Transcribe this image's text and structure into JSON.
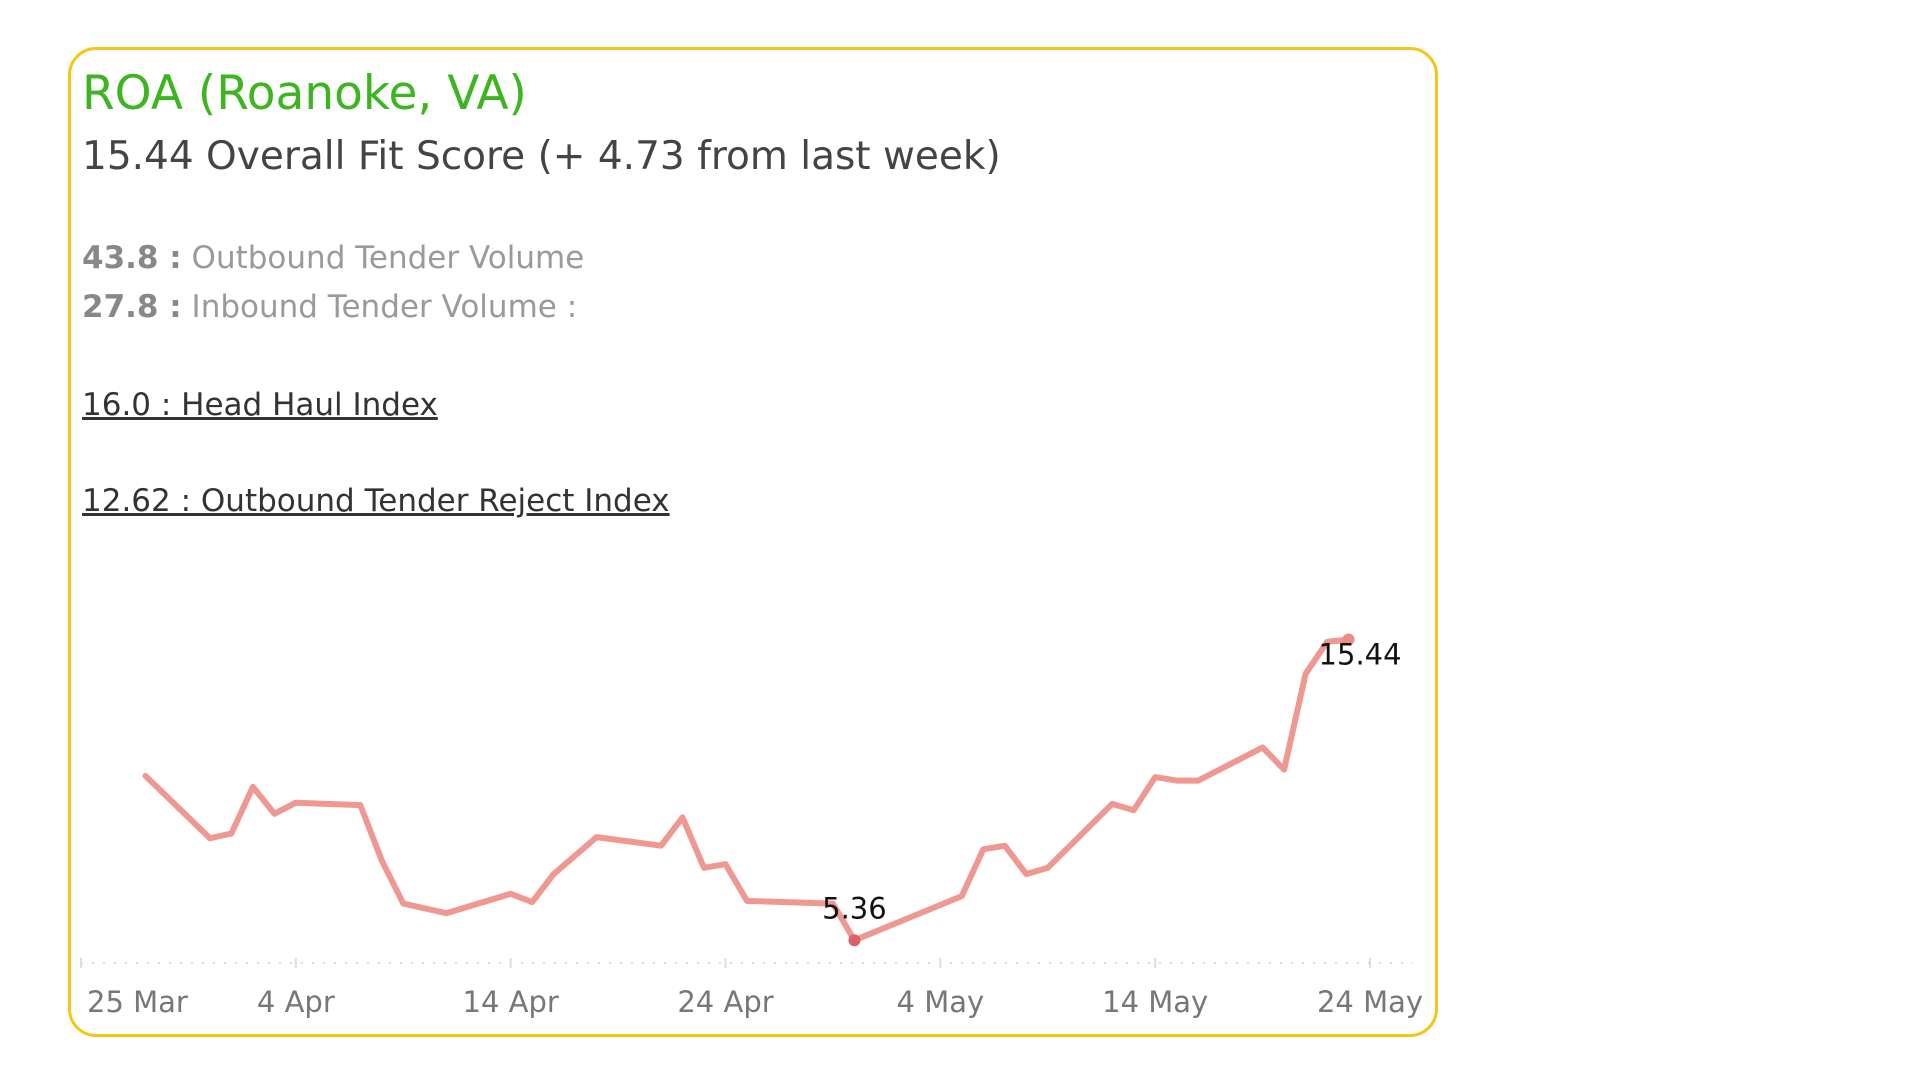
{
  "card": {
    "title": "ROA (Roanoke, VA)",
    "score_line": "15.44 Overall Fit Score (+ 4.73 from last week)",
    "metrics": [
      {
        "value": "43.8 :",
        "label": "Outbound Tender Volume"
      },
      {
        "value": "27.8 :",
        "label": "Inbound Tender Volume :"
      }
    ],
    "links": [
      "16.0 : Head Haul Index",
      "12.62 : Outbound Tender Reject Index"
    ]
  },
  "chart_data": {
    "type": "line",
    "color": "#ec8d85",
    "point_color": "#d9626a",
    "x": [
      "03-28",
      "03-31",
      "04-01",
      "04-02",
      "04-03",
      "04-04",
      "04-07",
      "04-08",
      "04-09",
      "04-11",
      "04-14",
      "04-15",
      "04-16",
      "04-18",
      "04-21",
      "04-22",
      "04-23",
      "04-24",
      "04-25",
      "04-29",
      "04-30",
      "05-05",
      "05-06",
      "05-07",
      "05-08",
      "05-09",
      "05-12",
      "05-13",
      "05-14",
      "05-15",
      "05-16",
      "05-19",
      "05-20",
      "05-21",
      "05-22",
      "05-23"
    ],
    "values": [
      10.87,
      8.78,
      8.94,
      10.5,
      9.6,
      9.97,
      9.89,
      8.03,
      6.59,
      6.27,
      6.92,
      6.64,
      7.58,
      8.82,
      8.53,
      9.48,
      7.79,
      7.91,
      6.68,
      6.59,
      5.36,
      6.84,
      8.41,
      8.53,
      7.58,
      7.79,
      9.93,
      9.72,
      10.83,
      10.71,
      10.71,
      11.82,
      11.08,
      14.29,
      15.36,
      15.44
    ],
    "value_labels": [
      null,
      null,
      null,
      null,
      null,
      null,
      null,
      null,
      null,
      null,
      null,
      null,
      null,
      null,
      null,
      null,
      null,
      null,
      null,
      null,
      "5.36",
      null,
      null,
      null,
      null,
      null,
      null,
      null,
      null,
      null,
      null,
      null,
      null,
      null,
      null,
      "15.44"
    ],
    "xlim": [
      "03-25",
      "05-26"
    ],
    "ylim": [
      4.6,
      17.5
    ],
    "xticks": [
      {
        "value": "03-25",
        "label": "25 Mar"
      },
      {
        "value": "04-04",
        "label": "4 Apr"
      },
      {
        "value": "04-14",
        "label": "14 Apr"
      },
      {
        "value": "04-24",
        "label": "24 Apr"
      },
      {
        "value": "05-04",
        "label": "4 May"
      },
      {
        "value": "05-14",
        "label": "14 May"
      },
      {
        "value": "05-24",
        "label": "24 May"
      }
    ]
  }
}
